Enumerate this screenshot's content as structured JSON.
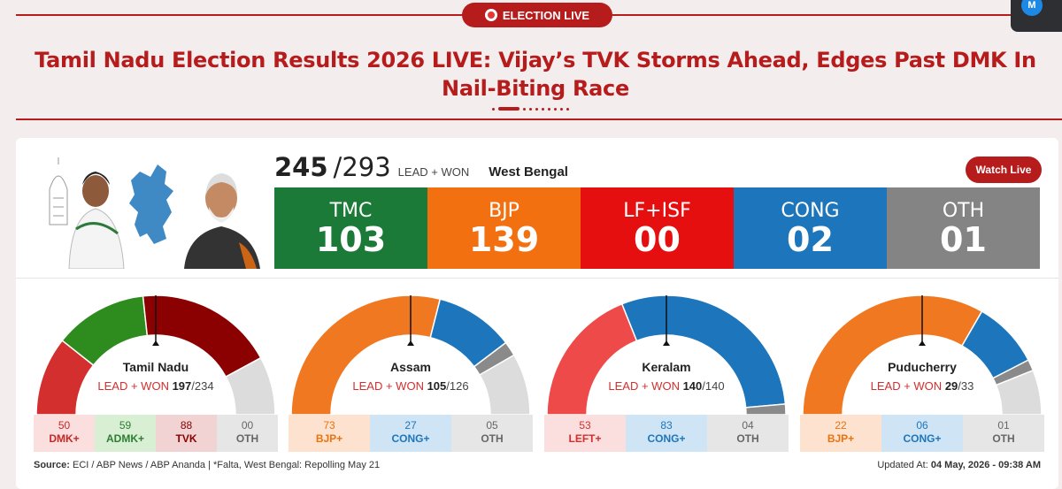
{
  "badge": "ELECTION LIVE",
  "headline": "Tamil Nadu Election Results 2026 LIVE: Vijay’s TVK Storms Ahead, Edges Past DMK In Nail-Biting Race",
  "notification_initial": "M",
  "wb": {
    "count": "245",
    "total": "/293",
    "lead_won_label": "LEAD + WON",
    "state": "West Bengal",
    "watch_live": "Watch Live",
    "parties": [
      {
        "name": "TMC",
        "value": "103",
        "color": "#1b7a37"
      },
      {
        "name": "BJP",
        "value": "139",
        "color": "#f2700f"
      },
      {
        "name": "LF+ISF",
        "value": "00",
        "color": "#e60f0f"
      },
      {
        "name": "CONG",
        "value": "02",
        "color": "#1d76bb"
      },
      {
        "name": "OTH",
        "value": "01",
        "color": "#848484"
      }
    ]
  },
  "states": [
    {
      "name": "Tamil Nadu",
      "lw_label": "LEAD + WON ",
      "lw_value": "197",
      "lw_total": "/234",
      "total": 234,
      "parties": [
        {
          "value": "50",
          "label": "DMK+",
          "color": "#d32f2f",
          "bg": "#fbdede",
          "text": "#c62828"
        },
        {
          "value": "59",
          "label": "ADMK+",
          "color": "#2e8b1e",
          "bg": "#d8efd4",
          "text": "#2e7d32"
        },
        {
          "value": "88",
          "label": "TVK",
          "color": "#8b0000",
          "bg": "#f1d3d3",
          "text": "#8b0000"
        },
        {
          "value": "00",
          "label": "OTH",
          "color": "#dcdcdc",
          "bg": "#e6e6e6",
          "text": "#666666"
        }
      ]
    },
    {
      "name": "Assam",
      "lw_label": "LEAD + WON ",
      "lw_value": "105",
      "lw_total": "/126",
      "total": 126,
      "parties": [
        {
          "value": "73",
          "label": "BJP+",
          "color": "#f07820",
          "bg": "#fde2cf",
          "text": "#e8730f"
        },
        {
          "value": "27",
          "label": "CONG+",
          "color": "#1d76bb",
          "bg": "#cfe4f4",
          "text": "#1d76bb"
        },
        {
          "value": "05",
          "label": "OTH",
          "color": "#8a8a8a",
          "bg": "#e6e6e6",
          "text": "#666666"
        }
      ]
    },
    {
      "name": "Keralam",
      "lw_label": "LEAD + WON ",
      "lw_value": "140",
      "lw_total": "/140",
      "total": 140,
      "parties": [
        {
          "value": "53",
          "label": "LEFT+",
          "color": "#ef4a4a",
          "bg": "#fbdede",
          "text": "#d32f2f"
        },
        {
          "value": "83",
          "label": "CONG+",
          "color": "#1d76bb",
          "bg": "#cfe4f4",
          "text": "#1d76bb"
        },
        {
          "value": "04",
          "label": "OTH",
          "color": "#8a8a8a",
          "bg": "#e6e6e6",
          "text": "#666666"
        }
      ]
    },
    {
      "name": "Puducherry",
      "lw_label": "LEAD + WON ",
      "lw_value": "29",
      "lw_total": "/33",
      "total": 33,
      "parties": [
        {
          "value": "22",
          "label": "BJP+",
          "color": "#f07820",
          "bg": "#fde2cf",
          "text": "#e8730f"
        },
        {
          "value": "06",
          "label": "CONG+",
          "color": "#1d76bb",
          "bg": "#cfe4f4",
          "text": "#1d76bb"
        },
        {
          "value": "01",
          "label": "OTH",
          "color": "#8a8a8a",
          "bg": "#e6e6e6",
          "text": "#666666"
        }
      ]
    }
  ],
  "footer": {
    "source_label": "Source:",
    "source_text": " ECI / ABP News / ABP Ananda | *Falta, West Bengal: Repolling May 21",
    "updated_label": "Updated At:",
    "updated_value": " 04 May, 2026 - 09:38 AM"
  }
}
